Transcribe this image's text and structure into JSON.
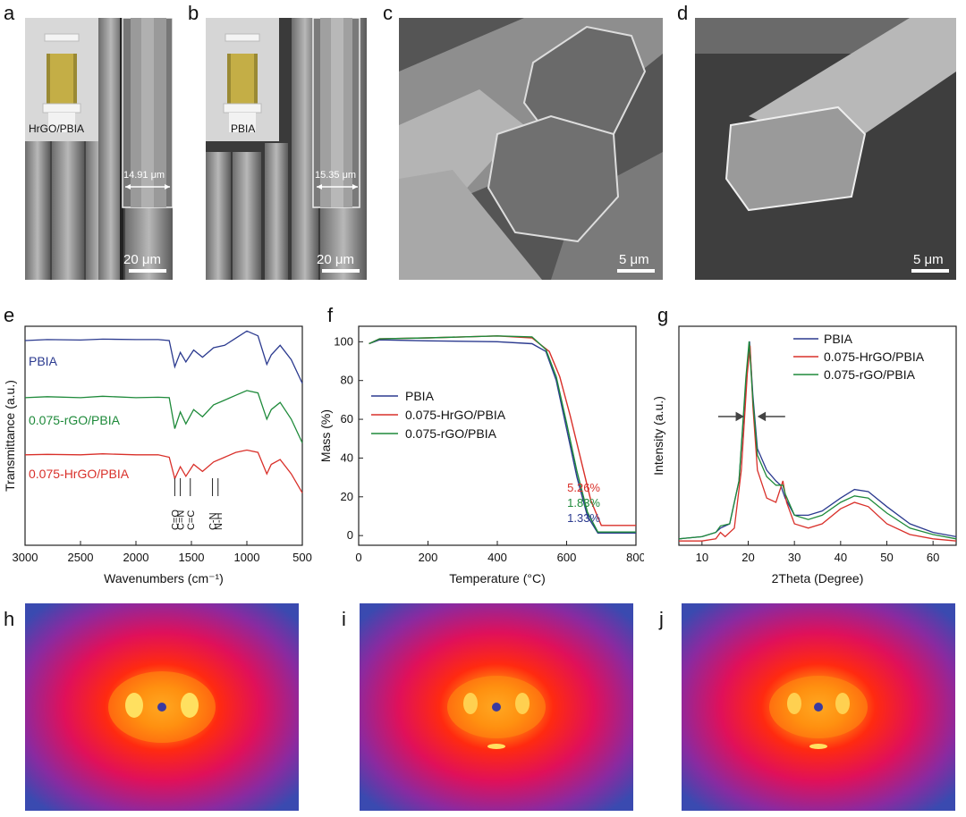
{
  "panel_letters": {
    "a": "a",
    "b": "b",
    "c": "c",
    "d": "d",
    "e": "e",
    "f": "f",
    "g": "g",
    "h": "h",
    "i": "i",
    "j": "j"
  },
  "panel_a": {
    "inset_label": "HrGO/PBIA",
    "measure": "14.91 μm",
    "scale": "20 μm"
  },
  "panel_b": {
    "inset_label": "PBIA",
    "measure": "15.35 μm",
    "scale": "20 μm"
  },
  "panel_c": {
    "scale": "5 μm"
  },
  "panel_d": {
    "scale": "5 μm"
  },
  "colors": {
    "pbia": "#2b3a8f",
    "rgo": "#1e8a3a",
    "hrgo": "#d9302a"
  },
  "chart_data": [
    {
      "id": "e",
      "type": "line",
      "title": "",
      "xlabel": "Wavenumbers (cm⁻¹)",
      "ylabel": "Transmittance (a.u.)",
      "xlim": [
        3000,
        500
      ],
      "xticks": [
        "3000",
        "2500",
        "2000",
        "1500",
        "1000",
        "500"
      ],
      "series": [
        {
          "name": "PBIA",
          "color": "#2b3a8f",
          "offset": 3,
          "points": [
            [
              3000,
              0.0
            ],
            [
              2800,
              0.02
            ],
            [
              2500,
              0.01
            ],
            [
              2300,
              0.03
            ],
            [
              2000,
              0.02
            ],
            [
              1800,
              0.02
            ],
            [
              1700,
              0.0
            ],
            [
              1650,
              -0.55
            ],
            [
              1600,
              -0.25
            ],
            [
              1550,
              -0.45
            ],
            [
              1480,
              -0.2
            ],
            [
              1400,
              -0.35
            ],
            [
              1300,
              -0.15
            ],
            [
              1200,
              -0.1
            ],
            [
              1100,
              0.05
            ],
            [
              1000,
              0.2
            ],
            [
              900,
              0.1
            ],
            [
              820,
              -0.5
            ],
            [
              780,
              -0.3
            ],
            [
              700,
              -0.1
            ],
            [
              600,
              -0.4
            ],
            [
              500,
              -0.9
            ]
          ]
        },
        {
          "name": "0.075-rGO/PBIA",
          "color": "#1e8a3a",
          "offset": 1.8,
          "points": [
            [
              3000,
              0.0
            ],
            [
              2800,
              0.02
            ],
            [
              2500,
              0.0
            ],
            [
              2300,
              0.03
            ],
            [
              2000,
              0.0
            ],
            [
              1800,
              0.01
            ],
            [
              1700,
              0.0
            ],
            [
              1650,
              -0.65
            ],
            [
              1600,
              -0.3
            ],
            [
              1550,
              -0.55
            ],
            [
              1480,
              -0.25
            ],
            [
              1400,
              -0.4
            ],
            [
              1300,
              -0.15
            ],
            [
              1200,
              -0.05
            ],
            [
              1100,
              0.05
            ],
            [
              1000,
              0.15
            ],
            [
              900,
              0.1
            ],
            [
              820,
              -0.45
            ],
            [
              780,
              -0.25
            ],
            [
              700,
              -0.1
            ],
            [
              600,
              -0.45
            ],
            [
              500,
              -0.95
            ]
          ]
        },
        {
          "name": "0.075-HrGO/PBIA",
          "color": "#d9302a",
          "offset": 0.6,
          "points": [
            [
              3000,
              0.0
            ],
            [
              2800,
              0.01
            ],
            [
              2500,
              0.0
            ],
            [
              2300,
              0.02
            ],
            [
              2000,
              0.0
            ],
            [
              1800,
              0.0
            ],
            [
              1700,
              -0.05
            ],
            [
              1650,
              -0.5
            ],
            [
              1600,
              -0.25
            ],
            [
              1550,
              -0.45
            ],
            [
              1480,
              -0.2
            ],
            [
              1400,
              -0.35
            ],
            [
              1300,
              -0.15
            ],
            [
              1200,
              -0.05
            ],
            [
              1100,
              0.05
            ],
            [
              1000,
              0.1
            ],
            [
              900,
              0.05
            ],
            [
              820,
              -0.4
            ],
            [
              780,
              -0.2
            ],
            [
              700,
              -0.1
            ],
            [
              600,
              -0.4
            ],
            [
              500,
              -0.8
            ]
          ]
        }
      ],
      "annotations": [
        {
          "text": "C=O",
          "x": 1650
        },
        {
          "text": "C=N",
          "x": 1600
        },
        {
          "text": "C=C",
          "x": 1510
        },
        {
          "text": "C-N",
          "x": 1310
        },
        {
          "text": "N-H",
          "x": 1260
        }
      ]
    },
    {
      "id": "f",
      "type": "line",
      "title": "",
      "xlabel": "Temperature (°C)",
      "ylabel": "Mass (%)",
      "xlim": [
        0,
        800
      ],
      "ylim": [
        -5,
        108
      ],
      "xticks": [
        "0",
        "200",
        "400",
        "600",
        "800"
      ],
      "yticks": [
        "0",
        "20",
        "40",
        "60",
        "80",
        "100"
      ],
      "series": [
        {
          "name": "PBIA",
          "color": "#2b3a8f",
          "points": [
            [
              30,
              99
            ],
            [
              60,
              101
            ],
            [
              200,
              100.5
            ],
            [
              400,
              100
            ],
            [
              500,
              99
            ],
            [
              540,
              95
            ],
            [
              570,
              80
            ],
            [
              600,
              55
            ],
            [
              630,
              30
            ],
            [
              660,
              10
            ],
            [
              690,
              1.33
            ],
            [
              800,
              1.33
            ]
          ]
        },
        {
          "name": "0.075-HrGO/PBIA",
          "color": "#d9302a",
          "points": [
            [
              30,
              99
            ],
            [
              60,
              101.5
            ],
            [
              200,
              102
            ],
            [
              400,
              103
            ],
            [
              500,
              102
            ],
            [
              550,
              95
            ],
            [
              580,
              82
            ],
            [
              610,
              62
            ],
            [
              640,
              40
            ],
            [
              670,
              18
            ],
            [
              700,
              5.26
            ],
            [
              800,
              5.26
            ]
          ]
        },
        {
          "name": "0.075-rGO/PBIA",
          "color": "#1e8a3a",
          "points": [
            [
              30,
              99
            ],
            [
              60,
              101.5
            ],
            [
              200,
              102
            ],
            [
              400,
              103
            ],
            [
              500,
              102.5
            ],
            [
              540,
              96
            ],
            [
              570,
              82
            ],
            [
              600,
              58
            ],
            [
              630,
              33
            ],
            [
              660,
              12
            ],
            [
              690,
              1.83
            ],
            [
              800,
              1.83
            ]
          ]
        }
      ],
      "residuals": [
        {
          "text": "5.26%",
          "color": "#d9302a"
        },
        {
          "text": "1.83%",
          "color": "#1e8a3a"
        },
        {
          "text": "1.33%",
          "color": "#2b3a8f"
        }
      ]
    },
    {
      "id": "g",
      "type": "line",
      "title": "",
      "xlabel": "2Theta (Degree)",
      "ylabel": "Intensity (a.u.)",
      "xlim": [
        5,
        65
      ],
      "ylim": [
        0,
        1
      ],
      "xticks": [
        "10",
        "20",
        "30",
        "40",
        "50",
        "60"
      ],
      "series": [
        {
          "name": "PBIA",
          "color": "#2b3a8f",
          "points": [
            [
              5,
              0.03
            ],
            [
              10,
              0.04
            ],
            [
              13,
              0.06
            ],
            [
              14,
              0.08
            ],
            [
              16,
              0.1
            ],
            [
              18,
              0.3
            ],
            [
              19.5,
              0.75
            ],
            [
              20.3,
              0.95
            ],
            [
              21,
              0.7
            ],
            [
              22,
              0.45
            ],
            [
              24,
              0.35
            ],
            [
              26,
              0.3
            ],
            [
              27,
              0.28
            ],
            [
              28,
              0.22
            ],
            [
              30,
              0.14
            ],
            [
              33,
              0.14
            ],
            [
              36,
              0.16
            ],
            [
              40,
              0.22
            ],
            [
              43,
              0.26
            ],
            [
              46,
              0.25
            ],
            [
              50,
              0.18
            ],
            [
              55,
              0.1
            ],
            [
              60,
              0.06
            ],
            [
              65,
              0.04
            ]
          ]
        },
        {
          "name": "0.075-HrGO/PBIA",
          "color": "#d9302a",
          "points": [
            [
              5,
              0.02
            ],
            [
              10,
              0.02
            ],
            [
              13,
              0.03
            ],
            [
              14,
              0.06
            ],
            [
              15,
              0.04
            ],
            [
              17,
              0.08
            ],
            [
              18.5,
              0.35
            ],
            [
              19.8,
              0.8
            ],
            [
              20.4,
              0.93
            ],
            [
              21,
              0.65
            ],
            [
              22,
              0.35
            ],
            [
              24,
              0.22
            ],
            [
              26,
              0.2
            ],
            [
              27.5,
              0.3
            ],
            [
              28.3,
              0.2
            ],
            [
              30,
              0.1
            ],
            [
              33,
              0.08
            ],
            [
              36,
              0.1
            ],
            [
              40,
              0.17
            ],
            [
              43,
              0.2
            ],
            [
              46,
              0.18
            ],
            [
              50,
              0.1
            ],
            [
              55,
              0.05
            ],
            [
              60,
              0.03
            ],
            [
              65,
              0.02
            ]
          ]
        },
        {
          "name": "0.075-rGO/PBIA",
          "color": "#1e8a3a",
          "points": [
            [
              5,
              0.03
            ],
            [
              10,
              0.04
            ],
            [
              13,
              0.06
            ],
            [
              14,
              0.09
            ],
            [
              16,
              0.1
            ],
            [
              18,
              0.3
            ],
            [
              19.5,
              0.78
            ],
            [
              20.2,
              0.95
            ],
            [
              21,
              0.68
            ],
            [
              22,
              0.42
            ],
            [
              24,
              0.32
            ],
            [
              26,
              0.28
            ],
            [
              27.5,
              0.28
            ],
            [
              28,
              0.24
            ],
            [
              30,
              0.14
            ],
            [
              33,
              0.12
            ],
            [
              36,
              0.14
            ],
            [
              40,
              0.2
            ],
            [
              43,
              0.23
            ],
            [
              46,
              0.22
            ],
            [
              50,
              0.15
            ],
            [
              55,
              0.08
            ],
            [
              60,
              0.05
            ],
            [
              65,
              0.03
            ]
          ]
        }
      ]
    }
  ]
}
